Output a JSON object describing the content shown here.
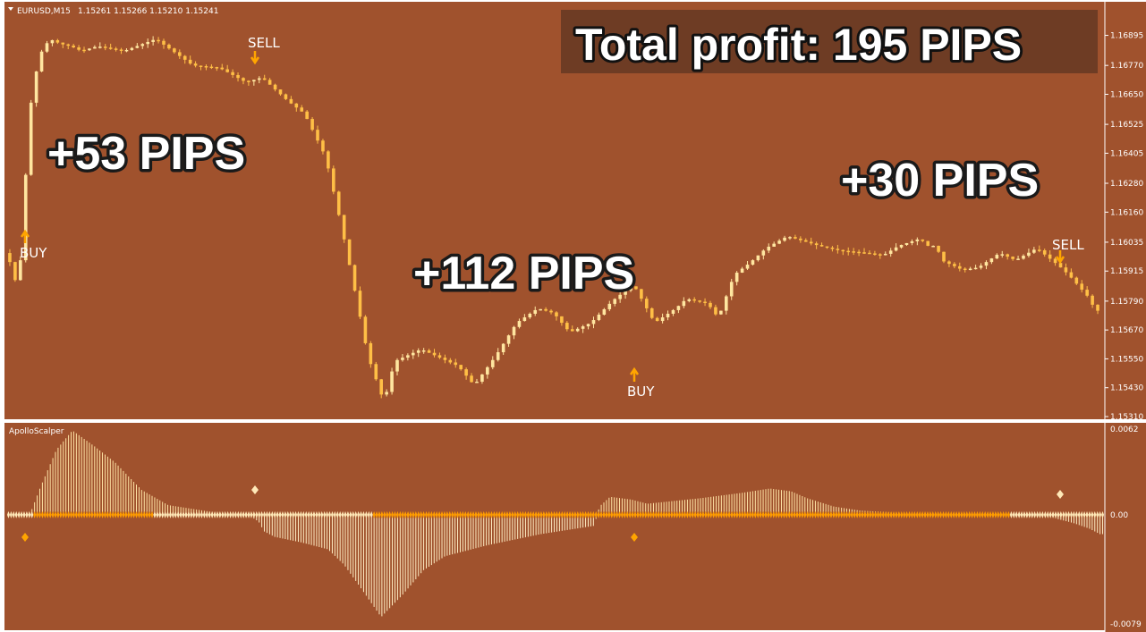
{
  "header": {
    "symbol": "EURUSD,M15",
    "ohlc": "1.15261 1.15266 1.15210 1.15241"
  },
  "banner": {
    "text": "Total profit: 195 PIPS"
  },
  "profit_labels": [
    "+53 PIPS",
    "+112 PIPS",
    "+30 PIPS"
  ],
  "signals": {
    "buy": "BUY",
    "sell": "SELL"
  },
  "indicator": {
    "name": "ApolloScalper"
  },
  "colors": {
    "background": "#a0522d",
    "candles": "#ffbf46",
    "candles_light": "#ffe6a0",
    "signal_arrow": "#ffa500",
    "indicator_positive": "#ffe4a6",
    "indicator_negative": "#ffefc6",
    "indicator_line_orange": "#ff9d00",
    "indicator_line_light": "#ffe9b8",
    "banner_bg": "#6e3c24"
  },
  "chart_data": [
    {
      "type": "line",
      "title": "EURUSD,M15",
      "ylim": [
        1.1531,
        1.1699
      ],
      "yticks": [
        "1.16895",
        "1.16770",
        "1.16650",
        "1.16525",
        "1.16405",
        "1.16280",
        "1.16160",
        "1.16035",
        "1.15915",
        "1.15790",
        "1.15670",
        "1.15550",
        "1.15430",
        "1.15310"
      ],
      "series": [
        {
          "name": "",
          "x": [
            0,
            2,
            3,
            4,
            6,
            8,
            10,
            12,
            14,
            17,
            22,
            28,
            35,
            40,
            45,
            48,
            53,
            56,
            60,
            63,
            66,
            68,
            71,
            73,
            78,
            82,
            85,
            88,
            92,
            96,
            100,
            103,
            106,
            110
          ],
          "values": [
            1.1599,
            1.1584,
            1.1608,
            1.1655,
            1.1681,
            1.1688,
            1.1686,
            1.1685,
            1.1683,
            1.1685,
            1.1683,
            1.1688,
            1.1677,
            1.1676,
            1.167,
            1.1672,
            1.1662,
            1.1657,
            1.1639,
            1.161,
            1.1578,
            1.1556,
            1.1537,
            1.1554,
            1.1559,
            1.1555,
            1.1552,
            1.1544,
            1.1556,
            1.157,
            1.1576,
            1.1574,
            1.1566,
            1.157
          ]
        },
        {
          "name": "",
          "x": [
            110,
            114,
            118,
            122,
            126,
            128,
            132,
            134,
            137,
            140,
            143,
            147,
            150,
            153,
            157,
            162,
            165,
            168,
            172,
            174,
            175,
            176,
            178,
            180,
            183,
            187,
            190,
            194,
            198,
            200,
            202,
            204,
            205
          ],
          "values": [
            1.157,
            1.1579,
            1.1586,
            1.157,
            1.1576,
            1.158,
            1.1578,
            1.1572,
            1.159,
            1.1595,
            1.1601,
            1.1606,
            1.1604,
            1.1602,
            1.16,
            1.1599,
            1.1598,
            1.1602,
            1.1605,
            1.1601,
            1.1603,
            1.1596,
            1.1594,
            1.1592,
            1.1593,
            1.1599,
            1.1596,
            1.1601,
            1.1594,
            1.159,
            1.1585,
            1.158,
            1.1575
          ]
        }
      ]
    },
    {
      "type": "bar",
      "title": "ApolloScalper",
      "ylim": [
        -0.0079,
        0.0062
      ],
      "yticks": [
        "0.0062",
        "0.00",
        "-0.0079"
      ],
      "series": [
        {
          "name": "",
          "x": [
            0,
            4,
            6,
            9,
            12,
            16,
            20,
            25,
            30,
            40,
            45,
            47,
            48,
            50,
            55,
            60,
            63,
            66,
            70,
            74,
            78,
            82,
            90,
            100,
            110,
            111,
            113,
            117,
            120,
            125,
            130,
            138,
            143,
            147,
            150,
            155,
            160,
            170,
            180,
            190,
            195,
            197,
            200,
            203,
            205
          ],
          "values": [
            0.0,
            0.0,
            0.002,
            0.0047,
            0.0061,
            0.005,
            0.0038,
            0.0018,
            0.0007,
            0.0001,
            0.0,
            -0.0005,
            -0.0012,
            -0.0016,
            -0.002,
            -0.0025,
            -0.0036,
            -0.0052,
            -0.0074,
            -0.0058,
            -0.004,
            -0.003,
            -0.0022,
            -0.0014,
            -0.0008,
            0.0006,
            0.0013,
            0.0011,
            0.0008,
            0.001,
            0.0012,
            0.0016,
            0.0019,
            0.0017,
            0.0012,
            0.0006,
            0.0003,
            0.0001,
            0.0001,
            0.0,
            0.0,
            -0.0003,
            -0.0006,
            -0.001,
            -0.0014
          ]
        }
      ]
    }
  ]
}
